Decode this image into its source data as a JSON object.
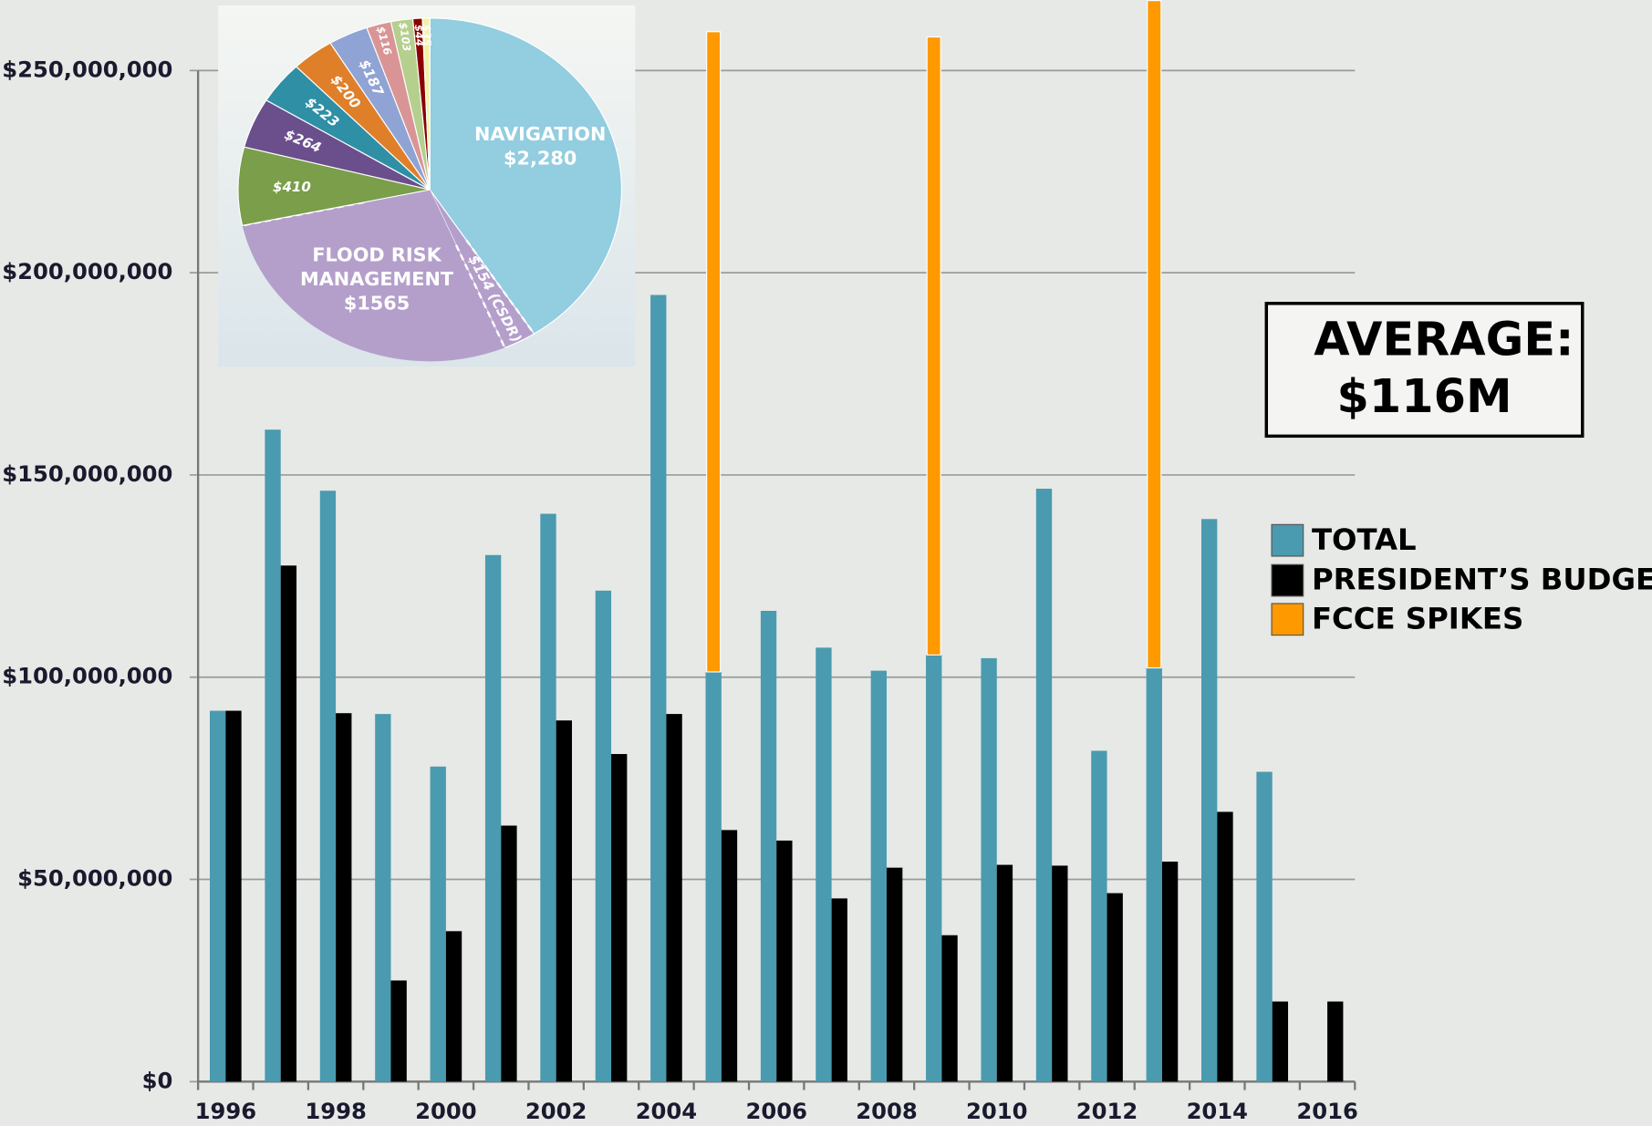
{
  "chart_data": [
    {
      "type": "bar",
      "categories": [
        "1996",
        null,
        "1998",
        null,
        "2000",
        null,
        "2002",
        null,
        "2004",
        null,
        "2006",
        null,
        "2008",
        null,
        "2010",
        null,
        "2012",
        null,
        "2014",
        null,
        "2016"
      ],
      "series": [
        {
          "name": "TOTAL",
          "color": "#4a9ab0",
          "values": [
            91700000,
            161200000,
            146100000,
            90900000,
            77900000,
            130200000,
            140400000,
            121400000,
            194500000,
            101300000,
            116400000,
            107300000,
            101600000,
            105500000,
            104700000,
            146600000,
            81800000,
            102300000,
            139100000,
            76600000,
            null
          ]
        },
        {
          "name": "PRESIDENT’S BUDGET",
          "color": "#000000",
          "values": [
            91700000,
            127600000,
            91100000,
            25000000,
            37200000,
            63300000,
            89300000,
            81000000,
            90900000,
            62200000,
            59600000,
            45300000,
            52900000,
            36200000,
            53600000,
            53400000,
            46600000,
            54400000,
            66700000,
            19800000,
            19800000
          ]
        },
        {
          "name": "FCCE SPIKES",
          "color": "#ff9900",
          "stack": "TOTAL",
          "values": [
            null,
            null,
            null,
            null,
            null,
            null,
            null,
            null,
            null,
            158300000,
            null,
            null,
            null,
            152800000,
            null,
            null,
            null,
            165000000,
            null,
            null,
            null
          ]
        }
      ],
      "ylim": [
        0,
        267400000
      ],
      "yticks": [
        {
          "value": 0,
          "label": "$0"
        },
        {
          "value": 50000000,
          "label": "$50,000,000"
        },
        {
          "value": 100000000,
          "label": "$100,000,000"
        },
        {
          "value": 150000000,
          "label": "$150,000,000"
        },
        {
          "value": 200000000,
          "label": "$200,000,000"
        },
        {
          "value": 250000000,
          "label": "$250,000,000"
        }
      ],
      "grid": true,
      "legend": "right",
      "annotation": "AVERAGE: $116M"
    },
    {
      "type": "pie",
      "categories": [
        "NAVIGATION",
        null,
        "FLOOD RISK MANAGEMENT",
        null,
        null,
        null,
        null,
        null,
        null,
        null,
        null,
        null
      ],
      "values": [
        2280,
        154,
        1565,
        410,
        264,
        223,
        200,
        187,
        116,
        103,
        44,
        35
      ],
      "value_labels": [
        "$2,280",
        "$154 (CSDR)",
        "$1565",
        "$410",
        "$264",
        "$223",
        "$200",
        "$187",
        "$116",
        "$103",
        "$44",
        "$35"
      ],
      "colors": [
        "#92cde0",
        "#b49fcb",
        "#b49fcb",
        "#7a9e4a",
        "#6b4f8c",
        "#2e8fa5",
        "#e07f2a",
        "#8fa3d4",
        "#d99595",
        "#b5cf8f",
        "#8b0000",
        "#f2f2a6"
      ]
    }
  ]
}
